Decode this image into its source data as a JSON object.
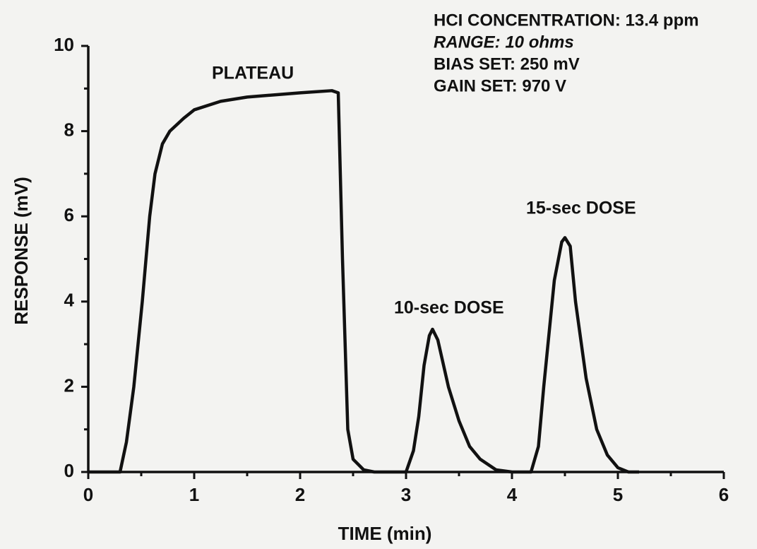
{
  "chart_data": {
    "type": "line",
    "x_label": "TIME (min)",
    "y_label": "RESPONSE (mV)",
    "annotations": [
      "PLATEAU",
      "10-sec DOSE",
      "15-sec DOSE"
    ],
    "info": [
      "HCI CONCENTRATION: 13.4 ppm",
      "RANGE: 10  ohms",
      "BIAS SET: 250 mV",
      "GAIN SET: 970 V"
    ],
    "xlim": [
      0,
      6
    ],
    "ylim": [
      0,
      10
    ],
    "xticks": [
      0,
      1,
      2,
      3,
      4,
      5,
      6
    ],
    "yticks": [
      0,
      2,
      4,
      6,
      8,
      10
    ],
    "xticks_minor": [
      0.5,
      1.5,
      2.5,
      3.5,
      4.5,
      5.5
    ],
    "yticks_minor": [
      1,
      3,
      5,
      7,
      9
    ],
    "series": [
      {
        "color": "#111111",
        "x": [
          0,
          0.3,
          0.36,
          0.43,
          0.51,
          0.58,
          0.63,
          0.7,
          0.77,
          0.9,
          1.0,
          1.25,
          1.5,
          1.75,
          2.0,
          2.3,
          2.36,
          2.4,
          2.45,
          2.5,
          2.6,
          2.7,
          3.0,
          3.07,
          3.12,
          3.17,
          3.22,
          3.25,
          3.3,
          3.4,
          3.5,
          3.6,
          3.7,
          3.85,
          4.0,
          4.18,
          4.25,
          4.3,
          4.4,
          4.47,
          4.5,
          4.55,
          4.6,
          4.7,
          4.8,
          4.9,
          5.0,
          5.1,
          5.2
        ],
        "values": [
          0,
          0,
          0.7,
          2,
          4,
          6,
          7,
          7.7,
          8,
          8.3,
          8.5,
          8.7,
          8.8,
          8.85,
          8.9,
          8.95,
          8.9,
          5,
          1,
          0.3,
          0.05,
          0,
          0,
          0.5,
          1.3,
          2.5,
          3.2,
          3.35,
          3.1,
          2,
          1.2,
          0.6,
          0.3,
          0.05,
          0,
          0,
          0.6,
          2,
          4.5,
          5.4,
          5.5,
          5.3,
          4,
          2.2,
          1,
          0.4,
          0.1,
          0,
          0
        ]
      }
    ]
  }
}
